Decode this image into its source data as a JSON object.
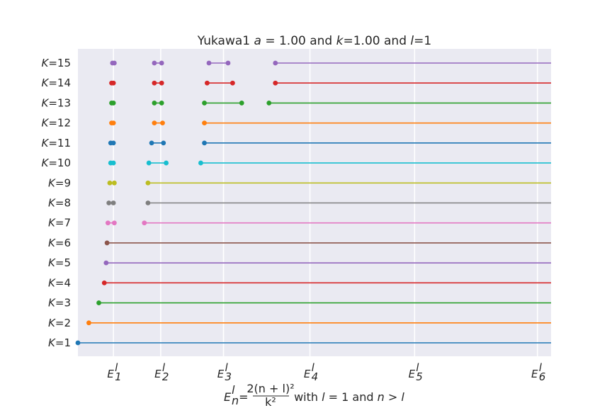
{
  "chart_data": {
    "type": "line",
    "title": "Yukawa1 a = 1.00 and k=1.00 and l=1",
    "title_parts": [
      "Yukawa1 ",
      "a",
      " = 1.00 and ",
      "k",
      "=1.00 and ",
      "l",
      "=1"
    ],
    "xlabel": "E_n^l = 2(n+l)^2 / k^2 with l = 1 and n > l",
    "xlabel_parts": {
      "lhs_base": "E",
      "lhs_sub": "n",
      "lhs_sup": "l",
      "equals": " = ",
      "numerator": "2(n + l)²",
      "denominator": "k²",
      "tail_1": " with ",
      "tail_l": "l",
      "tail_2": " = 1 and ",
      "tail_n": "n",
      "tail_gt": " > ",
      "tail_l2": "l"
    },
    "xlim": [
      -1.5,
      50.5
    ],
    "x_ticks": [
      {
        "base": "E",
        "sub": "1",
        "sup": "l",
        "value": 2.4
      },
      {
        "base": "E",
        "sub": "2",
        "sup": "l",
        "value": 7.6
      },
      {
        "base": "E",
        "sub": "3",
        "sup": "l",
        "value": 14.5
      },
      {
        "base": "E",
        "sub": "4",
        "sup": "l",
        "value": 24.0
      },
      {
        "base": "E",
        "sub": "5",
        "sup": "l",
        "value": 35.5
      },
      {
        "base": "E",
        "sub": "6",
        "sup": "l",
        "value": 49.0
      }
    ],
    "y_ticks": [
      "K=1",
      "K=2",
      "K=3",
      "K=4",
      "K=5",
      "K=6",
      "K=7",
      "K=8",
      "K=9",
      "K=10",
      "K=11",
      "K=12",
      "K=13",
      "K=14",
      "K=15"
    ],
    "series": [
      {
        "name": "K=1",
        "color": "#1f77b4",
        "points": [
          -1.5
        ]
      },
      {
        "name": "K=2",
        "color": "#ff7f0e",
        "points": [
          -0.3
        ]
      },
      {
        "name": "K=3",
        "color": "#2ca02c",
        "points": [
          0.8
        ]
      },
      {
        "name": "K=4",
        "color": "#d62728",
        "points": [
          1.4
        ]
      },
      {
        "name": "K=5",
        "color": "#9467bd",
        "points": [
          1.6
        ]
      },
      {
        "name": "K=6",
        "color": "#8c564b",
        "points": [
          1.7
        ]
      },
      {
        "name": "K=7",
        "color": "#e377c2",
        "points": [
          1.8,
          2.5,
          5.8
        ]
      },
      {
        "name": "K=8",
        "color": "#7f7f7f",
        "points": [
          1.9,
          2.4,
          6.2
        ]
      },
      {
        "name": "K=9",
        "color": "#bcbd22",
        "points": [
          2.0,
          2.5,
          6.2
        ]
      },
      {
        "name": "K=10",
        "color": "#17becf",
        "points": [
          2.1,
          2.4,
          6.3,
          8.2,
          12.0
        ]
      },
      {
        "name": "K=11",
        "color": "#1f77b4",
        "points": [
          2.1,
          2.4,
          6.6,
          7.9,
          12.4
        ]
      },
      {
        "name": "K=12",
        "color": "#ff7f0e",
        "points": [
          2.2,
          2.4,
          6.9,
          7.8,
          12.4
        ]
      },
      {
        "name": "K=13",
        "color": "#2ca02c",
        "points": [
          2.2,
          2.4,
          6.9,
          7.7,
          12.4,
          16.5,
          19.5
        ]
      },
      {
        "name": "K=14",
        "color": "#d62728",
        "points": [
          2.2,
          2.4,
          6.9,
          7.7,
          12.7,
          15.5,
          20.2
        ]
      },
      {
        "name": "K=15",
        "color": "#9467bd",
        "points": [
          2.3,
          2.5,
          6.9,
          7.7,
          12.9,
          15.0,
          20.2
        ]
      }
    ]
  }
}
